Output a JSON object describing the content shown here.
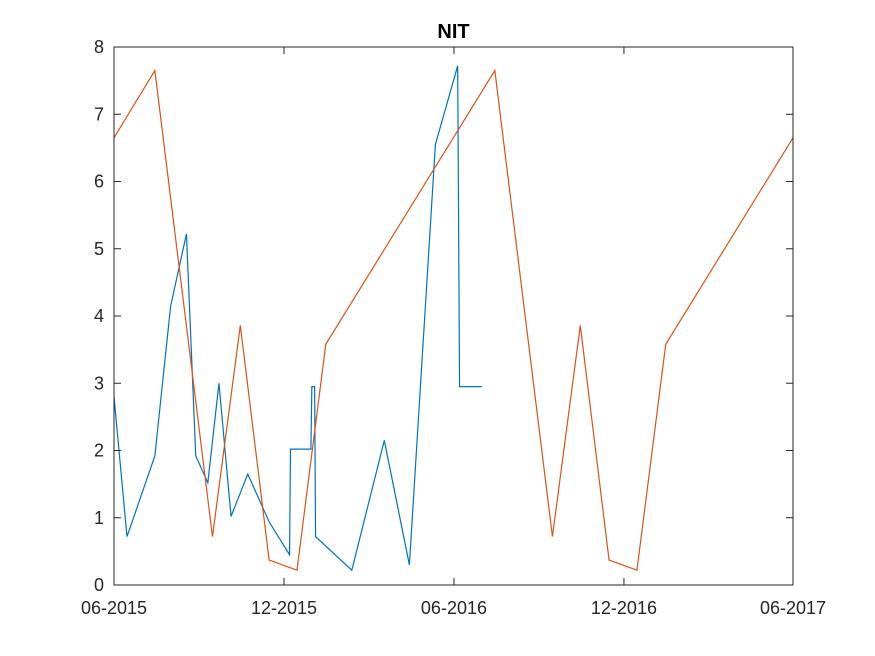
{
  "chart_data": {
    "type": "line",
    "title": "NIT",
    "xlabel": "",
    "ylabel": "",
    "x_axis": {
      "type": "date",
      "range": [
        "2015-06-01",
        "2017-06-01"
      ],
      "ticks": [
        {
          "date": "2015-06-01",
          "label": "06-2015"
        },
        {
          "date": "2015-12-01",
          "label": "12-2015"
        },
        {
          "date": "2016-06-01",
          "label": "06-2016"
        },
        {
          "date": "2016-12-01",
          "label": "12-2016"
        },
        {
          "date": "2017-06-01",
          "label": "06-2017"
        }
      ]
    },
    "y_axis": {
      "range": [
        0,
        8
      ],
      "ticks": [
        0,
        1,
        2,
        3,
        4,
        5,
        6,
        7,
        8
      ]
    },
    "grid": false,
    "legend": "none",
    "series": [
      {
        "color": "#0072BD",
        "points": [
          {
            "x": "2015-06-01",
            "y": 2.8
          },
          {
            "x": "2015-06-15",
            "y": 0.72
          },
          {
            "x": "2015-07-15",
            "y": 1.92
          },
          {
            "x": "2015-08-01",
            "y": 4.15
          },
          {
            "x": "2015-08-18",
            "y": 5.22
          },
          {
            "x": "2015-08-28",
            "y": 1.92
          },
          {
            "x": "2015-09-10",
            "y": 1.52
          },
          {
            "x": "2015-09-22",
            "y": 3.0
          },
          {
            "x": "2015-10-05",
            "y": 1.02
          },
          {
            "x": "2015-10-23",
            "y": 1.65
          },
          {
            "x": "2015-11-15",
            "y": 0.94
          },
          {
            "x": "2015-12-07",
            "y": 0.45
          },
          {
            "x": "2015-12-08",
            "y": 2.02
          },
          {
            "x": "2015-12-30",
            "y": 2.02
          },
          {
            "x": "2015-12-31",
            "y": 2.95
          },
          {
            "x": "2016-01-03",
            "y": 2.95
          },
          {
            "x": "2016-01-04",
            "y": 0.72
          },
          {
            "x": "2016-02-12",
            "y": 0.22
          },
          {
            "x": "2016-03-18",
            "y": 2.15
          },
          {
            "x": "2016-04-14",
            "y": 0.3
          },
          {
            "x": "2016-05-12",
            "y": 6.55
          },
          {
            "x": "2016-06-05",
            "y": 7.72
          },
          {
            "x": "2016-06-07",
            "y": 2.95
          },
          {
            "x": "2016-07-01",
            "y": 2.95
          }
        ]
      },
      {
        "color": "#D95319",
        "points": [
          {
            "x": "2015-06-01",
            "y": 6.65
          },
          {
            "x": "2015-07-15",
            "y": 7.65
          },
          {
            "x": "2015-09-15",
            "y": 0.72
          },
          {
            "x": "2015-10-15",
            "y": 3.86
          },
          {
            "x": "2015-11-15",
            "y": 0.37
          },
          {
            "x": "2015-12-15",
            "y": 0.22
          },
          {
            "x": "2016-01-15",
            "y": 3.58
          },
          {
            "x": "2016-07-15",
            "y": 7.65
          },
          {
            "x": "2016-09-15",
            "y": 0.72
          },
          {
            "x": "2016-10-15",
            "y": 3.86
          },
          {
            "x": "2016-11-15",
            "y": 0.37
          },
          {
            "x": "2016-12-15",
            "y": 0.22
          },
          {
            "x": "2017-01-15",
            "y": 3.58
          },
          {
            "x": "2017-06-01",
            "y": 6.65
          }
        ]
      }
    ]
  }
}
